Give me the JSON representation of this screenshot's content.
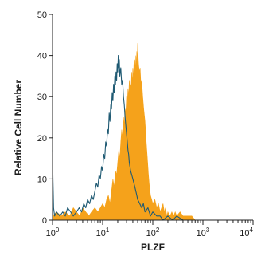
{
  "chart_data": {
    "type": "area",
    "title": "",
    "xlabel": "PLZF",
    "ylabel": "Relative Cell Number",
    "x_scale": "log",
    "xlim": [
      1,
      10000
    ],
    "ylim": [
      0,
      50
    ],
    "grid": false,
    "x_ticks": [
      {
        "value": 1,
        "base": "10",
        "exp": "0"
      },
      {
        "value": 10,
        "base": "10",
        "exp": "1"
      },
      {
        "value": 100,
        "base": "10",
        "exp": "2"
      },
      {
        "value": 1000,
        "base": "10",
        "exp": "3"
      },
      {
        "value": 10000,
        "base": "10",
        "exp": "4"
      }
    ],
    "y_ticks": [
      {
        "value": 0,
        "label": "0"
      },
      {
        "value": 10,
        "label": "10"
      },
      {
        "value": 20,
        "label": "20"
      },
      {
        "value": 30,
        "label": "30"
      },
      {
        "value": 40,
        "label": "40"
      },
      {
        "value": 50,
        "label": "50"
      }
    ],
    "series": [
      {
        "style": "filled",
        "color": "#f5a21b",
        "points": [
          [
            1.0,
            1
          ],
          [
            1.2,
            2
          ],
          [
            1.5,
            1
          ],
          [
            1.8,
            2
          ],
          [
            2.2,
            1
          ],
          [
            2.6,
            3
          ],
          [
            3.0,
            2
          ],
          [
            3.5,
            1
          ],
          [
            4.0,
            3
          ],
          [
            4.6,
            2
          ],
          [
            5.3,
            1
          ],
          [
            6.0,
            2
          ],
          [
            7.0,
            3
          ],
          [
            8.0,
            2
          ],
          [
            9.0,
            3
          ],
          [
            10,
            4
          ],
          [
            11,
            3
          ],
          [
            12,
            5
          ],
          [
            13,
            6
          ],
          [
            14,
            4
          ],
          [
            15,
            7
          ],
          [
            16,
            10
          ],
          [
            17,
            8
          ],
          [
            18,
            12
          ],
          [
            19,
            11
          ],
          [
            20,
            14
          ],
          [
            21,
            17
          ],
          [
            22,
            15
          ],
          [
            23,
            19
          ],
          [
            24,
            22
          ],
          [
            25,
            20
          ],
          [
            26,
            25
          ],
          [
            27,
            23
          ],
          [
            28,
            27
          ],
          [
            29,
            26
          ],
          [
            30,
            30
          ],
          [
            31,
            28
          ],
          [
            32,
            32
          ],
          [
            33,
            30
          ],
          [
            34,
            34
          ],
          [
            35,
            31
          ],
          [
            36,
            33
          ],
          [
            37,
            32
          ],
          [
            38,
            36
          ],
          [
            39,
            33
          ],
          [
            40,
            37
          ],
          [
            41,
            34
          ],
          [
            42,
            38
          ],
          [
            43,
            35
          ],
          [
            44,
            39
          ],
          [
            45,
            36
          ],
          [
            46,
            40
          ],
          [
            47,
            37
          ],
          [
            48,
            41
          ],
          [
            49,
            38
          ],
          [
            50,
            43
          ],
          [
            51,
            40
          ],
          [
            52,
            38
          ],
          [
            54,
            36
          ],
          [
            56,
            37
          ],
          [
            58,
            33
          ],
          [
            60,
            34
          ],
          [
            63,
            30
          ],
          [
            66,
            27
          ],
          [
            70,
            24
          ],
          [
            74,
            19
          ],
          [
            78,
            15
          ],
          [
            82,
            11
          ],
          [
            86,
            8
          ],
          [
            90,
            6
          ],
          [
            95,
            5
          ],
          [
            100,
            4
          ],
          [
            110,
            5
          ],
          [
            120,
            3
          ],
          [
            130,
            4
          ],
          [
            140,
            2
          ],
          [
            150,
            3
          ],
          [
            160,
            4
          ],
          [
            170,
            2
          ],
          [
            180,
            3
          ],
          [
            190,
            1
          ],
          [
            200,
            2
          ],
          [
            220,
            1
          ],
          [
            240,
            2
          ],
          [
            260,
            1
          ],
          [
            280,
            2
          ],
          [
            300,
            1
          ],
          [
            350,
            2
          ],
          [
            400,
            1
          ],
          [
            450,
            1
          ],
          [
            500,
            1
          ],
          [
            550,
            1
          ],
          [
            600,
            1
          ],
          [
            700,
            0
          ],
          [
            1000,
            0
          ]
        ]
      },
      {
        "style": "line",
        "color": "#1f5a73",
        "points": [
          [
            1.0,
            17
          ],
          [
            1.02,
            10
          ],
          [
            1.05,
            3
          ],
          [
            1.1,
            1
          ],
          [
            1.2,
            2
          ],
          [
            1.4,
            1
          ],
          [
            1.6,
            2
          ],
          [
            1.8,
            1
          ],
          [
            2.0,
            3
          ],
          [
            2.3,
            2
          ],
          [
            2.6,
            1
          ],
          [
            3.0,
            2
          ],
          [
            3.4,
            3
          ],
          [
            3.8,
            2
          ],
          [
            4.2,
            4
          ],
          [
            4.6,
            3
          ],
          [
            5.0,
            5
          ],
          [
            5.5,
            4
          ],
          [
            6.0,
            6
          ],
          [
            6.5,
            5
          ],
          [
            7.0,
            7
          ],
          [
            7.5,
            9
          ],
          [
            8.0,
            8
          ],
          [
            8.5,
            11
          ],
          [
            9.0,
            10
          ],
          [
            9.5,
            13
          ],
          [
            10,
            12
          ],
          [
            10.5,
            16
          ],
          [
            11,
            15
          ],
          [
            11.5,
            19
          ],
          [
            12,
            18
          ],
          [
            12.5,
            22
          ],
          [
            13,
            21
          ],
          [
            13.5,
            26
          ],
          [
            14,
            24
          ],
          [
            14.5,
            28
          ],
          [
            15,
            27
          ],
          [
            15.5,
            31
          ],
          [
            16,
            29
          ],
          [
            16.5,
            33
          ],
          [
            17,
            31
          ],
          [
            17.5,
            35
          ],
          [
            18,
            33
          ],
          [
            18.5,
            36
          ],
          [
            19,
            34
          ],
          [
            19.5,
            38
          ],
          [
            20,
            36
          ],
          [
            20.5,
            40
          ],
          [
            21,
            37
          ],
          [
            21.5,
            39
          ],
          [
            22,
            35
          ],
          [
            23,
            37
          ],
          [
            24,
            33
          ],
          [
            25,
            34
          ],
          [
            26,
            30
          ],
          [
            27,
            28
          ],
          [
            28,
            25
          ],
          [
            29,
            23
          ],
          [
            30,
            21
          ],
          [
            31,
            19
          ],
          [
            32,
            17
          ],
          [
            33,
            16
          ],
          [
            34,
            14
          ],
          [
            35,
            13
          ],
          [
            36,
            12
          ],
          [
            38,
            11
          ],
          [
            40,
            10
          ],
          [
            42,
            9
          ],
          [
            44,
            8
          ],
          [
            46,
            7
          ],
          [
            48,
            6
          ],
          [
            50,
            5
          ],
          [
            55,
            4
          ],
          [
            60,
            3
          ],
          [
            65,
            4
          ],
          [
            70,
            2
          ],
          [
            80,
            3
          ],
          [
            90,
            1
          ],
          [
            100,
            2
          ],
          [
            120,
            1
          ],
          [
            140,
            1
          ],
          [
            160,
            0
          ],
          [
            200,
            1
          ],
          [
            250,
            0
          ],
          [
            300,
            1
          ],
          [
            400,
            0
          ],
          [
            600,
            0
          ],
          [
            1000,
            0
          ]
        ]
      }
    ]
  }
}
